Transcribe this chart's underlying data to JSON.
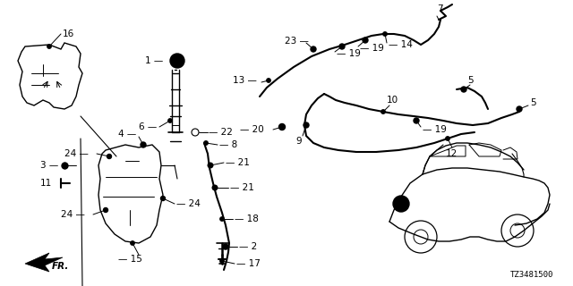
{
  "bg_color": "#ffffff",
  "line_color": "#000000",
  "fig_width": 6.4,
  "fig_height": 3.2,
  "dpi": 100,
  "diagram_code": "TZ3481500"
}
